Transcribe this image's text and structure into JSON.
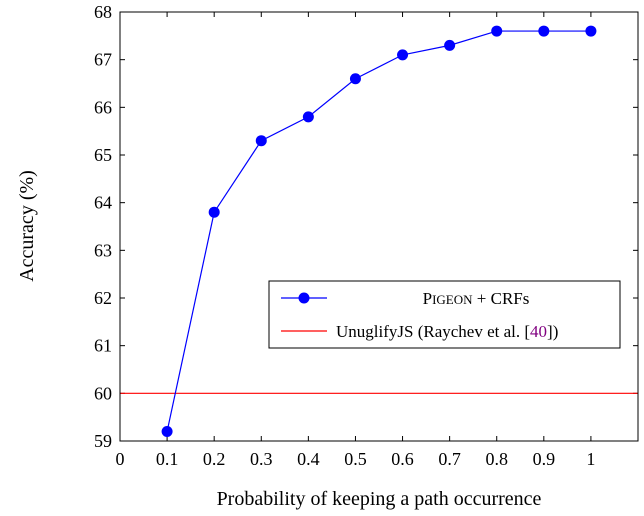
{
  "chart_data": {
    "type": "line",
    "xlabel": "Probability of keeping a path occurrence",
    "ylabel": "Accuracy (%)",
    "xlim": [
      0,
      1.1
    ],
    "ylim": [
      59,
      68
    ],
    "x_ticks": [
      0,
      0.1,
      0.2,
      0.3,
      0.4,
      0.5,
      0.6,
      0.7,
      0.8,
      0.9,
      1
    ],
    "x_tick_labels": [
      "0",
      "0.1",
      "0.2",
      "0.3",
      "0.4",
      "0.5",
      "0.6",
      "0.7",
      "0.8",
      "0.9",
      "1"
    ],
    "y_ticks": [
      59,
      60,
      61,
      62,
      63,
      64,
      65,
      66,
      67,
      68
    ],
    "y_tick_labels": [
      "59",
      "60",
      "61",
      "62",
      "63",
      "64",
      "65",
      "66",
      "67",
      "68"
    ],
    "grid": false,
    "legend_position": "center-right",
    "series": [
      {
        "name_prefix": "P",
        "name_smallcaps": "IGEON",
        "name_suffix": " + CRFs",
        "color": "#0000ff",
        "marker": "circle",
        "x": [
          0.1,
          0.2,
          0.3,
          0.4,
          0.5,
          0.6,
          0.7,
          0.8,
          0.9,
          1.0
        ],
        "y": [
          59.2,
          63.8,
          65.3,
          65.8,
          66.6,
          67.1,
          67.3,
          67.6,
          67.6,
          67.6
        ]
      },
      {
        "name_main": "UnuglifyJS (Raychev et al. [",
        "name_ref": "40",
        "name_tail": "])",
        "ref_color": "#800080",
        "color": "#ff0000",
        "type": "hline",
        "y": 60.0
      }
    ]
  }
}
